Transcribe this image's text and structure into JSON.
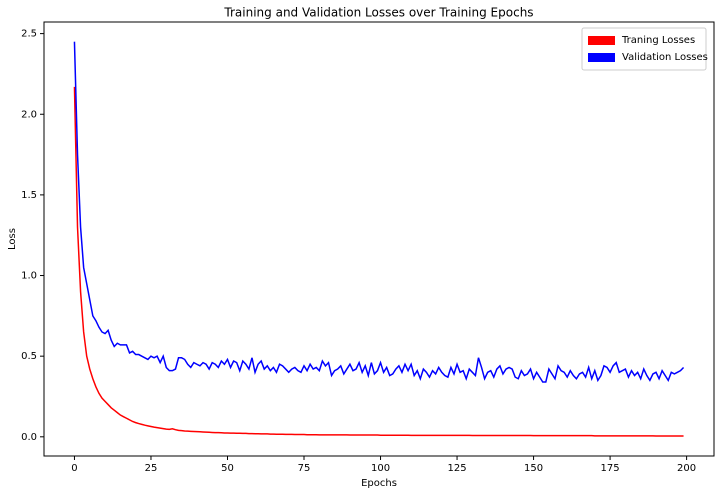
{
  "chart_data": {
    "type": "line",
    "title": "Training and Validation Losses over Training Epochs",
    "x_label": "Epochs",
    "y_label": "Loss",
    "x": [
      0,
      1,
      2,
      3,
      4,
      5,
      6,
      7,
      8,
      9,
      10,
      11,
      12,
      13,
      14,
      15,
      16,
      17,
      18,
      19,
      20,
      21,
      22,
      23,
      24,
      25,
      26,
      27,
      28,
      29,
      30,
      31,
      32,
      33,
      34,
      35,
      36,
      37,
      38,
      39,
      40,
      41,
      42,
      43,
      44,
      45,
      46,
      47,
      48,
      49,
      50,
      51,
      52,
      53,
      54,
      55,
      56,
      57,
      58,
      59,
      60,
      61,
      62,
      63,
      64,
      65,
      66,
      67,
      68,
      69,
      70,
      71,
      72,
      73,
      74,
      75,
      76,
      77,
      78,
      79,
      80,
      81,
      82,
      83,
      84,
      85,
      86,
      87,
      88,
      89,
      90,
      91,
      92,
      93,
      94,
      95,
      96,
      97,
      98,
      99,
      100,
      101,
      102,
      103,
      104,
      105,
      106,
      107,
      108,
      109,
      110,
      111,
      112,
      113,
      114,
      115,
      116,
      117,
      118,
      119,
      120,
      121,
      122,
      123,
      124,
      125,
      126,
      127,
      128,
      129,
      130,
      131,
      132,
      133,
      134,
      135,
      136,
      137,
      138,
      139,
      140,
      141,
      142,
      143,
      144,
      145,
      146,
      147,
      148,
      149,
      150,
      151,
      152,
      153,
      154,
      155,
      156,
      157,
      158,
      159,
      160,
      161,
      162,
      163,
      164,
      165,
      166,
      167,
      168,
      169,
      170,
      171,
      172,
      173,
      174,
      175,
      176,
      177,
      178,
      179,
      180,
      181,
      182,
      183,
      184,
      185,
      186,
      187,
      188,
      189,
      190,
      191,
      192,
      193,
      194,
      195,
      196,
      197,
      198,
      199
    ],
    "series": [
      {
        "name": "Traning Losses",
        "color": "#ff0000",
        "values": [
          2.17,
          1.3,
          0.9,
          0.65,
          0.5,
          0.42,
          0.36,
          0.31,
          0.27,
          0.24,
          0.22,
          0.2,
          0.18,
          0.165,
          0.15,
          0.135,
          0.125,
          0.115,
          0.105,
          0.095,
          0.088,
          0.082,
          0.077,
          0.072,
          0.068,
          0.064,
          0.06,
          0.057,
          0.054,
          0.051,
          0.048,
          0.046,
          0.05,
          0.044,
          0.04,
          0.038,
          0.036,
          0.035,
          0.034,
          0.033,
          0.032,
          0.031,
          0.03,
          0.029,
          0.028,
          0.027,
          0.026,
          0.026,
          0.025,
          0.024,
          0.024,
          0.023,
          0.023,
          0.022,
          0.022,
          0.021,
          0.021,
          0.02,
          0.02,
          0.019,
          0.019,
          0.018,
          0.018,
          0.018,
          0.017,
          0.017,
          0.016,
          0.016,
          0.016,
          0.015,
          0.015,
          0.015,
          0.014,
          0.014,
          0.014,
          0.014,
          0.013,
          0.013,
          0.013,
          0.013,
          0.012,
          0.012,
          0.012,
          0.012,
          0.012,
          0.012,
          0.012,
          0.012,
          0.012,
          0.012,
          0.011,
          0.011,
          0.011,
          0.011,
          0.011,
          0.011,
          0.011,
          0.011,
          0.011,
          0.011,
          0.01,
          0.01,
          0.01,
          0.01,
          0.01,
          0.01,
          0.01,
          0.01,
          0.01,
          0.01,
          0.009,
          0.009,
          0.009,
          0.009,
          0.009,
          0.009,
          0.009,
          0.009,
          0.009,
          0.009,
          0.009,
          0.009,
          0.009,
          0.009,
          0.009,
          0.009,
          0.009,
          0.009,
          0.009,
          0.009,
          0.008,
          0.008,
          0.008,
          0.008,
          0.008,
          0.008,
          0.008,
          0.008,
          0.008,
          0.008,
          0.008,
          0.008,
          0.008,
          0.008,
          0.008,
          0.008,
          0.008,
          0.008,
          0.008,
          0.008,
          0.007,
          0.007,
          0.007,
          0.007,
          0.007,
          0.007,
          0.007,
          0.007,
          0.007,
          0.007,
          0.007,
          0.007,
          0.007,
          0.007,
          0.007,
          0.007,
          0.007,
          0.007,
          0.007,
          0.007,
          0.006,
          0.006,
          0.006,
          0.006,
          0.006,
          0.006,
          0.006,
          0.006,
          0.006,
          0.006,
          0.006,
          0.006,
          0.006,
          0.006,
          0.006,
          0.006,
          0.006,
          0.006,
          0.006,
          0.006,
          0.005,
          0.005,
          0.005,
          0.005,
          0.005,
          0.005,
          0.005,
          0.005,
          0.005,
          0.005
        ]
      },
      {
        "name": "Validation Losses",
        "color": "#0000ff",
        "values": [
          2.45,
          1.75,
          1.3,
          1.05,
          0.95,
          0.85,
          0.75,
          0.72,
          0.68,
          0.65,
          0.64,
          0.66,
          0.6,
          0.56,
          0.58,
          0.57,
          0.57,
          0.57,
          0.52,
          0.53,
          0.51,
          0.51,
          0.5,
          0.49,
          0.48,
          0.5,
          0.49,
          0.5,
          0.46,
          0.5,
          0.43,
          0.41,
          0.41,
          0.42,
          0.49,
          0.49,
          0.48,
          0.45,
          0.43,
          0.46,
          0.45,
          0.44,
          0.46,
          0.45,
          0.42,
          0.46,
          0.45,
          0.43,
          0.47,
          0.45,
          0.48,
          0.43,
          0.47,
          0.46,
          0.41,
          0.47,
          0.45,
          0.42,
          0.49,
          0.4,
          0.45,
          0.47,
          0.42,
          0.44,
          0.41,
          0.43,
          0.4,
          0.45,
          0.44,
          0.42,
          0.4,
          0.42,
          0.43,
          0.41,
          0.4,
          0.44,
          0.41,
          0.45,
          0.42,
          0.43,
          0.41,
          0.47,
          0.44,
          0.46,
          0.38,
          0.41,
          0.42,
          0.44,
          0.39,
          0.42,
          0.45,
          0.41,
          0.42,
          0.46,
          0.4,
          0.44,
          0.38,
          0.46,
          0.39,
          0.41,
          0.46,
          0.4,
          0.43,
          0.38,
          0.39,
          0.42,
          0.44,
          0.4,
          0.45,
          0.41,
          0.45,
          0.38,
          0.41,
          0.36,
          0.42,
          0.4,
          0.37,
          0.41,
          0.39,
          0.43,
          0.4,
          0.38,
          0.37,
          0.43,
          0.39,
          0.45,
          0.4,
          0.41,
          0.36,
          0.42,
          0.4,
          0.38,
          0.49,
          0.43,
          0.36,
          0.4,
          0.41,
          0.37,
          0.42,
          0.44,
          0.39,
          0.42,
          0.43,
          0.42,
          0.37,
          0.36,
          0.41,
          0.38,
          0.39,
          0.42,
          0.36,
          0.4,
          0.37,
          0.34,
          0.34,
          0.42,
          0.39,
          0.36,
          0.44,
          0.41,
          0.4,
          0.37,
          0.41,
          0.38,
          0.36,
          0.39,
          0.4,
          0.37,
          0.43,
          0.36,
          0.41,
          0.35,
          0.38,
          0.44,
          0.43,
          0.4,
          0.44,
          0.46,
          0.4,
          0.41,
          0.42,
          0.37,
          0.41,
          0.38,
          0.4,
          0.36,
          0.42,
          0.38,
          0.35,
          0.39,
          0.4,
          0.36,
          0.41,
          0.38,
          0.35,
          0.4,
          0.39,
          0.4,
          0.41,
          0.43
        ]
      }
    ],
    "xlim": [
      -9.95,
      208.95
    ],
    "ylim": [
      -0.119,
      2.572
    ],
    "xticks": [
      0,
      25,
      50,
      75,
      100,
      125,
      150,
      175,
      200
    ],
    "yticks": [
      {
        "value": 0,
        "label": "0.0"
      },
      0.5,
      {
        "value": 1,
        "label": "1.0"
      },
      1.5,
      {
        "value": 2,
        "label": "2.0"
      },
      2.5
    ],
    "grid": false,
    "legend": "upper right"
  }
}
